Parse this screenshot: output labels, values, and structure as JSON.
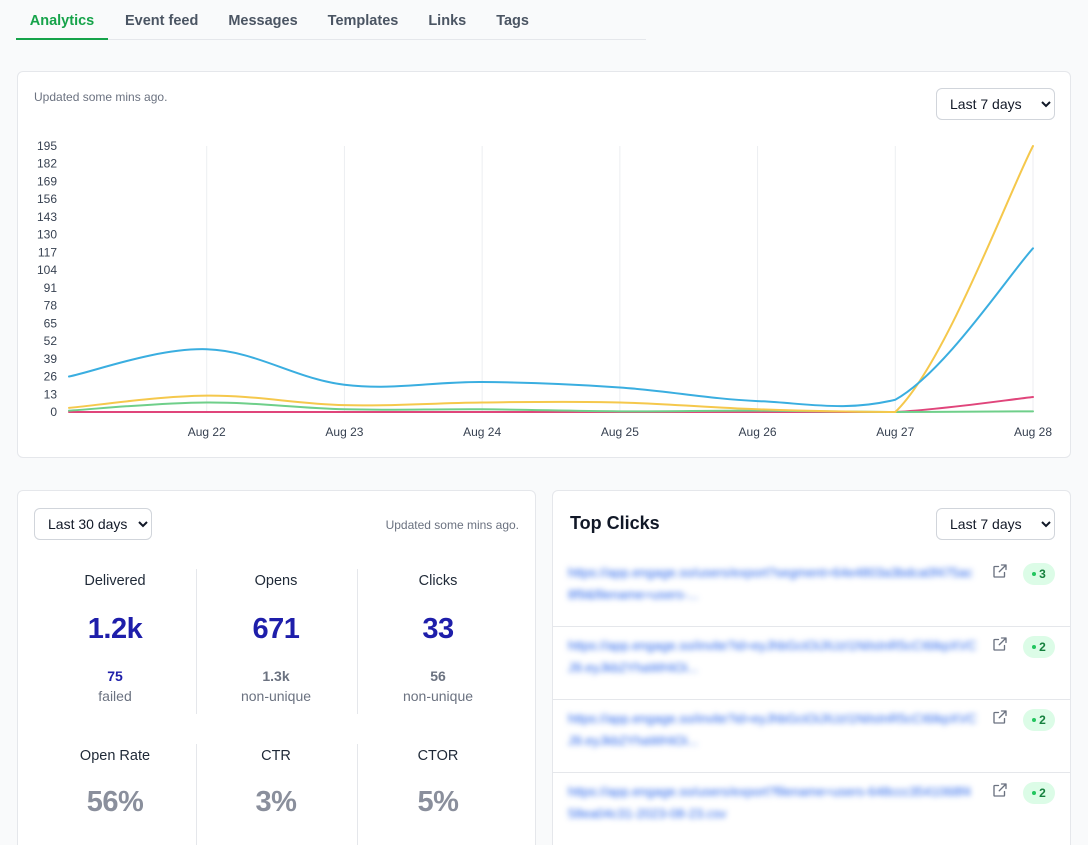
{
  "tabs": [
    {
      "label": "Analytics",
      "active": true
    },
    {
      "label": "Event feed",
      "active": false
    },
    {
      "label": "Messages",
      "active": false
    },
    {
      "label": "Templates",
      "active": false
    },
    {
      "label": "Links",
      "active": false
    },
    {
      "label": "Tags",
      "active": false
    }
  ],
  "chart_card": {
    "updated": "Updated some mins ago.",
    "range_select": "Last 7 days"
  },
  "chart_data": {
    "type": "line",
    "x": [
      "",
      "Aug 22",
      "Aug 23",
      "Aug 24",
      "Aug 25",
      "Aug 26",
      "Aug 27",
      "Aug 28"
    ],
    "x_numeric_note": "",
    "yticks": [
      0,
      13,
      26,
      39,
      52,
      65,
      78,
      91,
      104,
      117,
      130,
      143,
      156,
      169,
      182,
      195
    ],
    "ylim": [
      0,
      195
    ],
    "grid": "vertical",
    "legend": "none",
    "series": [
      {
        "color": "#3aaee0",
        "values": [
          26,
          46,
          20,
          22,
          18,
          8,
          9,
          120
        ]
      },
      {
        "color": "#f5c84c",
        "values": [
          3,
          12,
          5,
          7,
          7,
          2,
          0,
          195
        ]
      },
      {
        "color": "#6fcf8a",
        "values": [
          1,
          7,
          2,
          2,
          0.5,
          1,
          0,
          0.5
        ]
      },
      {
        "color": "#e0457b",
        "values": [
          0,
          0,
          0,
          0,
          0,
          0,
          0,
          11
        ]
      }
    ]
  },
  "stats_card": {
    "range_select": "Last 30 days",
    "updated": "Updated some mins ago.",
    "delivered": {
      "label": "Delivered",
      "value": "1.2k",
      "sub_value": "75",
      "sub_label": "failed"
    },
    "opens": {
      "label": "Opens",
      "value": "671",
      "sub_value": "1.3k",
      "sub_label": "non-unique"
    },
    "clicks": {
      "label": "Clicks",
      "value": "33",
      "sub_value": "56",
      "sub_label": "non-unique"
    },
    "open_rate": {
      "label": "Open Rate",
      "value": "56%"
    },
    "ctr": {
      "label": "CTR",
      "value": "3%"
    },
    "ctor": {
      "label": "CTOR",
      "value": "5%"
    }
  },
  "top_clicks": {
    "title": "Top Clicks",
    "range_select": "Last 7 days",
    "items": [
      {
        "url": "https://app.engage.so/users/export?segment=64e4803a3bdca0f475ac8f9&filename=users-...",
        "count": "3"
      },
      {
        "url": "https://app.engage.so/invite?id=eyJhbGciOiJIUzI1NiIsInR5cCI6IkpXVCJ9.eyJkb2YhaWHiOi...",
        "count": "2"
      },
      {
        "url": "https://app.engage.so/invite?id=eyJhbGciOiJIUzI1NiIsInR5cCI6IkpXVCJ9.eyJkb2YhaWHiOi...",
        "count": "2"
      },
      {
        "url": "https://app.engage.so/users/export?filename=users-648ccc3541068f458ea04c31-2023-08-23.csv",
        "count": "2"
      }
    ]
  },
  "colors": {
    "accent": "#16a34a",
    "metric": "#1e1eaa",
    "badge_bg": "#dcfce7",
    "badge_fg": "#15803d"
  },
  "icons": {
    "external_link": "external-link-icon",
    "select_chevron": "chevron-down-icon"
  }
}
